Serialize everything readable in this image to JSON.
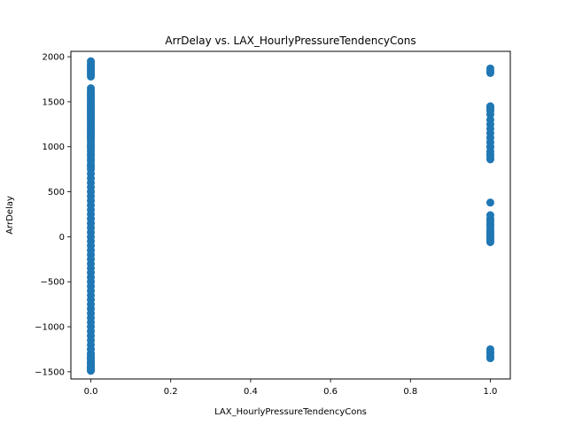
{
  "chart_data": {
    "type": "scatter",
    "title": "ArrDelay vs. LAX_HourlyPressureTendencyCons",
    "xlabel": "LAX_HourlyPressureTendencyCons",
    "ylabel": "ArrDelay",
    "xlim": [
      -0.05,
      1.05
    ],
    "ylim": [
      -1580,
      2060
    ],
    "grid": false,
    "legend": "none",
    "xticks": [
      0.0,
      0.2,
      0.4,
      0.6,
      0.8,
      1.0
    ],
    "xtick_labels": [
      "0.0",
      "0.2",
      "0.4",
      "0.6",
      "0.8",
      "1.0"
    ],
    "yticks": [
      -1500,
      -1000,
      -500,
      0,
      500,
      1000,
      1500,
      2000
    ],
    "ytick_labels": [
      "−1500",
      "−1000",
      "−500",
      "0",
      "500",
      "1000",
      "1500",
      "2000"
    ],
    "marker_color": "#1f77b4",
    "series": [
      {
        "x": [
          0,
          0,
          0,
          0,
          0,
          0,
          0,
          0,
          0,
          0,
          0,
          0,
          0,
          0,
          0,
          0,
          0,
          0,
          0,
          0,
          0,
          0,
          0,
          0,
          0,
          0,
          0,
          0,
          0,
          0,
          0,
          0,
          0,
          0,
          0,
          0,
          0,
          0,
          0,
          0,
          0,
          0,
          0,
          0,
          0,
          0,
          0,
          0,
          0,
          0,
          0,
          0,
          0,
          0,
          0,
          0,
          0,
          0,
          0,
          0,
          0,
          0,
          0,
          0,
          0,
          0,
          0,
          0,
          0,
          0,
          0,
          0,
          0,
          0,
          0,
          0,
          0,
          0,
          0,
          0,
          0,
          0,
          0,
          0,
          0,
          0,
          0,
          0,
          0,
          0,
          0,
          0,
          0,
          0,
          0,
          0,
          0,
          0,
          0,
          0,
          0,
          0,
          0,
          0,
          0,
          1,
          1,
          1,
          1,
          1,
          1,
          1,
          1,
          1,
          1,
          1,
          1,
          1,
          1,
          1,
          1,
          1,
          1,
          1,
          1,
          1,
          1,
          1,
          1,
          1,
          1,
          1,
          1,
          1,
          1,
          1,
          1,
          1,
          1,
          1,
          1,
          1,
          1,
          1,
          1,
          1
        ],
        "y": [
          1950,
          1920,
          1900,
          1880,
          1860,
          1840,
          1820,
          1800,
          1780,
          1650,
          1620,
          1600,
          1580,
          1560,
          1540,
          1520,
          1500,
          1480,
          1460,
          1440,
          1420,
          1400,
          1380,
          1360,
          1340,
          1320,
          1300,
          1280,
          1260,
          1240,
          1220,
          1200,
          1180,
          1160,
          1140,
          1120,
          1100,
          1080,
          1050,
          1020,
          1000,
          980,
          950,
          920,
          900,
          870,
          840,
          800,
          780,
          750,
          700,
          650,
          600,
          550,
          500,
          450,
          400,
          350,
          300,
          250,
          200,
          150,
          100,
          50,
          0,
          -50,
          -100,
          -150,
          -200,
          -250,
          -300,
          -350,
          -400,
          -450,
          -500,
          -550,
          -600,
          -650,
          -700,
          -750,
          -800,
          -850,
          -900,
          -950,
          -1000,
          -1050,
          -1100,
          -1150,
          -1200,
          -1250,
          -1300,
          -1330,
          -1360,
          -1390,
          -1420,
          -1440,
          -1460,
          -1480,
          -1490,
          -1470,
          -1450,
          -1400,
          -1350,
          -1300,
          -1250,
          1870,
          1840,
          1820,
          1450,
          1420,
          1400,
          1300,
          1250,
          1200,
          1150,
          1100,
          1050,
          1000,
          950,
          900,
          860,
          380,
          240,
          200,
          170,
          140,
          110,
          80,
          60,
          40,
          20,
          0,
          -10,
          -30,
          -50,
          -1250,
          -1280,
          -1300,
          -1330,
          -1350,
          1440,
          1360,
          1000,
          920,
          870,
          -60
        ]
      }
    ]
  }
}
